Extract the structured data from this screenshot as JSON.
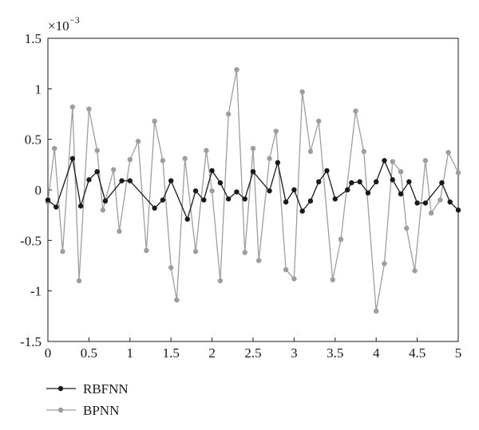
{
  "chart_data": {
    "type": "line",
    "title": "",
    "xlabel": "",
    "ylabel": "",
    "y_scale_label": "×10",
    "y_scale_exponent": "−3",
    "xlim": [
      0,
      5
    ],
    "ylim": [
      -1.5,
      1.5
    ],
    "x_ticks": [
      0,
      0.5,
      1,
      1.5,
      2,
      2.5,
      3,
      3.5,
      4,
      4.5,
      5
    ],
    "x_tick_labels": [
      "0",
      "0.5",
      "1",
      "1.5",
      "2",
      "2.5",
      "3",
      "3.5",
      "4",
      "4.5",
      "5"
    ],
    "y_ticks": [
      1.5,
      1,
      0.5,
      0,
      -0.5,
      -1,
      -1.5
    ],
    "y_tick_labels": [
      "1.5",
      "1",
      "0.5",
      "0",
      "-0.5",
      "-1",
      "-1.5"
    ],
    "grid": false,
    "legend_position": "bottom-left",
    "series": [
      {
        "name": "RBFNN",
        "color": "#1a1a1a",
        "x": [
          0,
          0.1,
          0.3,
          0.4,
          0.5,
          0.6,
          0.7,
          0.9,
          1.0,
          1.3,
          1.4,
          1.5,
          1.7,
          1.8,
          1.9,
          2.0,
          2.1,
          2.2,
          2.3,
          2.4,
          2.5,
          2.7,
          2.8,
          2.9,
          3.0,
          3.1,
          3.2,
          3.3,
          3.4,
          3.5,
          3.65,
          3.7,
          3.8,
          3.9,
          4.0,
          4.1,
          4.2,
          4.3,
          4.4,
          4.5,
          4.6,
          4.8,
          4.9,
          5.0
        ],
        "values": [
          -0.1,
          -0.17,
          0.31,
          -0.16,
          0.1,
          0.18,
          -0.11,
          0.09,
          0.09,
          -0.18,
          -0.1,
          0.09,
          -0.29,
          -0.01,
          -0.1,
          0.19,
          0.07,
          -0.09,
          -0.02,
          -0.09,
          0.18,
          -0.01,
          0.27,
          -0.12,
          0.0,
          -0.21,
          -0.11,
          0.08,
          0.19,
          -0.09,
          0.0,
          0.07,
          0.08,
          -0.03,
          0.08,
          0.29,
          0.1,
          -0.04,
          0.08,
          -0.13,
          -0.13,
          0.07,
          -0.12,
          -0.2
        ]
      },
      {
        "name": "BPNN",
        "color": "#9e9e9e",
        "x": [
          0,
          0.08,
          0.18,
          0.3,
          0.38,
          0.5,
          0.6,
          0.67,
          0.8,
          0.87,
          1.0,
          1.1,
          1.2,
          1.3,
          1.4,
          1.5,
          1.57,
          1.67,
          1.8,
          1.93,
          2.0,
          2.1,
          2.2,
          2.3,
          2.4,
          2.5,
          2.57,
          2.7,
          2.78,
          2.9,
          3.0,
          3.1,
          3.2,
          3.3,
          3.47,
          3.57,
          3.75,
          3.85,
          4.0,
          4.1,
          4.2,
          4.3,
          4.37,
          4.47,
          4.6,
          4.67,
          4.78,
          4.88,
          5.0
        ],
        "values": [
          -0.12,
          0.41,
          -0.61,
          0.82,
          -0.9,
          0.8,
          0.39,
          -0.2,
          0.2,
          -0.41,
          0.3,
          0.48,
          -0.6,
          0.68,
          0.29,
          -0.77,
          -1.09,
          0.31,
          -0.61,
          0.39,
          -0.01,
          -0.9,
          0.75,
          1.19,
          -0.62,
          0.41,
          -0.7,
          0.31,
          0.58,
          -0.79,
          -0.88,
          0.97,
          0.38,
          0.68,
          -0.89,
          -0.49,
          0.78,
          0.38,
          -1.2,
          -0.73,
          0.28,
          0.18,
          -0.38,
          -0.8,
          0.29,
          -0.23,
          -0.1,
          0.37,
          0.17
        ]
      }
    ]
  }
}
